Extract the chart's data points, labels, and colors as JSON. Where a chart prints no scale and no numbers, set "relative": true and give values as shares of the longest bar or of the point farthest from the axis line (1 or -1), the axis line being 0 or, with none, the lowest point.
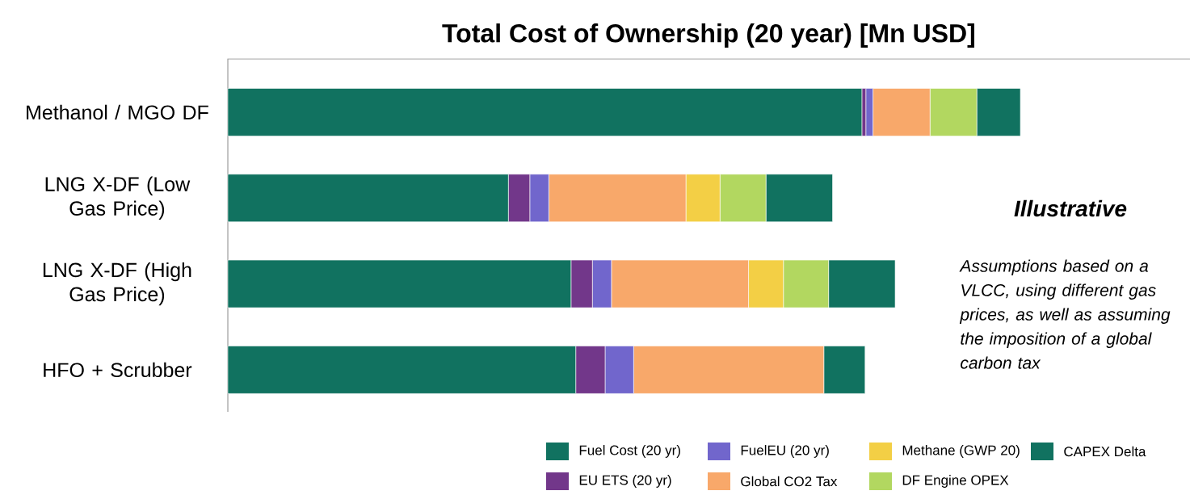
{
  "chart_data": {
    "type": "bar",
    "orientation": "horizontal",
    "stacked": true,
    "relative": true,
    "title": "Total Cost of Ownership (20 year) [Mn USD]",
    "categories": [
      "Methanol / MGO DF",
      "LNG X-DF (Low Gas Price)",
      "LNG X-DF (High Gas Price)",
      "HFO + Scrubber"
    ],
    "series": [
      {
        "name": "Fuel Cost (20 yr)",
        "color": "#117260",
        "values": [
          0.8,
          0.354,
          0.433,
          0.439
        ]
      },
      {
        "name": "EU ETS (20 yr)",
        "color": "#72378a",
        "values": [
          0.005,
          0.027,
          0.027,
          0.037
        ]
      },
      {
        "name": "FuelEU (20 yr)",
        "color": "#7166cc",
        "values": [
          0.009,
          0.024,
          0.024,
          0.036
        ]
      },
      {
        "name": "Global CO2 Tax",
        "color": "#f8a86a",
        "values": [
          0.072,
          0.173,
          0.173,
          0.24
        ]
      },
      {
        "name": "Methane (GWP 20)",
        "color": "#f3cf45",
        "values": [
          0,
          0.043,
          0.044,
          0
        ]
      },
      {
        "name": "DF Engine OPEX",
        "color": "#b2d760",
        "values": [
          0.059,
          0.058,
          0.057,
          0
        ]
      },
      {
        "name": "CAPEX Delta",
        "color": "#117260",
        "values": [
          0.055,
          0.084,
          0.084,
          0.052
        ]
      }
    ],
    "annotations": [
      "Illustrative",
      "Assumptions based on a VLCC, using different gas prices, as well as assuming the imposition of a global carbon tax"
    ],
    "legend": "bottom right"
  }
}
